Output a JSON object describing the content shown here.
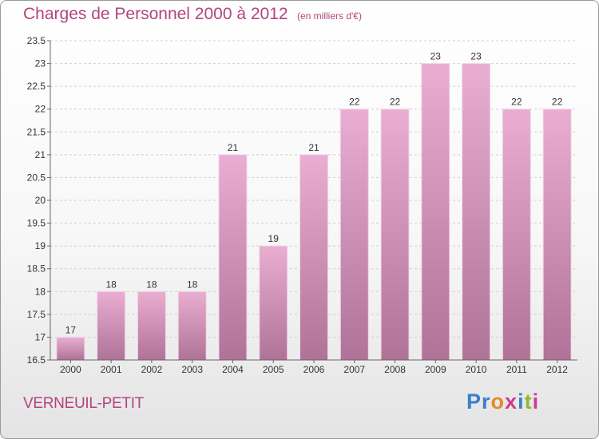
{
  "header": {
    "title": "Charges de Personnel 2000 à 2012",
    "subtitle": "(en milliers d'€)"
  },
  "footer": {
    "commune": "VERNEUIL-PETIT",
    "logo": "Proxiti"
  },
  "colors": {
    "title": "#b3447e",
    "bar_top": "#e9aed2",
    "bar_bottom": "#b07398",
    "axis": "#666666",
    "grid": "#d0d0d0"
  },
  "chart_data": {
    "type": "bar",
    "categories": [
      "2000",
      "2001",
      "2002",
      "2003",
      "2004",
      "2005",
      "2006",
      "2007",
      "2008",
      "2009",
      "2010",
      "2011",
      "2012"
    ],
    "values": [
      17,
      18,
      18,
      18,
      21,
      19,
      21,
      22,
      22,
      23,
      23,
      22,
      22
    ],
    "data_labels": [
      "17",
      "18",
      "18",
      "18",
      "21",
      "19",
      "21",
      "22",
      "22",
      "23",
      "23",
      "22",
      "22"
    ],
    "ylim": [
      16.5,
      23.5
    ],
    "yticks": [
      16.5,
      17,
      17.5,
      18,
      18.5,
      19,
      19.5,
      20,
      20.5,
      21,
      21.5,
      22,
      22.5,
      23,
      23.5
    ],
    "ytick_labels": [
      "16.5",
      "17",
      "17.5",
      "18",
      "18.5",
      "19",
      "19.5",
      "20",
      "20.5",
      "21",
      "21.5",
      "22",
      "22.5",
      "23",
      "23.5"
    ],
    "grid": true,
    "legend": "none"
  }
}
